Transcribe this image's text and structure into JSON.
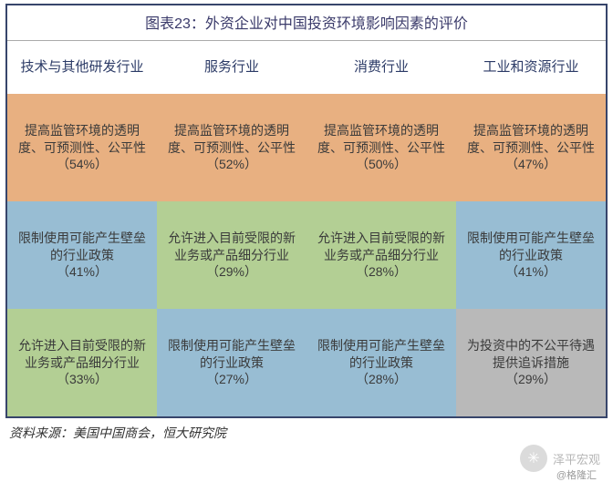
{
  "title": "图表23：外资企业对中国投资环境影响因素的评价",
  "source": "资料来源：美国中国商会，恒大研究院",
  "colors": {
    "border": "#37456b",
    "orange": "#e8b081",
    "blue": "#98bdd3",
    "green": "#b3cf94",
    "gray": "#b9b9b9",
    "header_text": "#2b3a66"
  },
  "headers": [
    "技术与其他研发行业",
    "服务行业",
    "消费行业",
    "工业和资源行业"
  ],
  "rows": [
    [
      {
        "text": "提高监管环境的透明度、可预测性、公平性",
        "pct": "（54%）",
        "color": "orange"
      },
      {
        "text": "提高监管环境的透明度、可预测性、公平性",
        "pct": "（52%）",
        "color": "orange"
      },
      {
        "text": "提高监管环境的透明度、可预测性、公平性",
        "pct": "（50%）",
        "color": "orange"
      },
      {
        "text": "提高监管环境的透明度、可预测性、公平性",
        "pct": "（47%）",
        "color": "orange"
      }
    ],
    [
      {
        "text": "限制使用可能产生壁垒的行业政策",
        "pct": "（41%）",
        "color": "blue"
      },
      {
        "text": "允许进入目前受限的新业务或产品细分行业",
        "pct": "（29%）",
        "color": "green"
      },
      {
        "text": "允许进入目前受限的新业务或产品细分行业",
        "pct": "（28%）",
        "color": "green"
      },
      {
        "text": "限制使用可能产生壁垒的行业政策",
        "pct": "（41%）",
        "color": "blue"
      }
    ],
    [
      {
        "text": "允许进入目前受限的新业务或产品细分行业",
        "pct": "（33%）",
        "color": "green"
      },
      {
        "text": "限制使用可能产生壁垒的行业政策",
        "pct": "（27%）",
        "color": "blue"
      },
      {
        "text": "限制使用可能产生壁垒的行业政策",
        "pct": "（28%）",
        "color": "blue"
      },
      {
        "text": "为投资中的不公平待遇提供追诉措施",
        "pct": "（29%）",
        "color": "gray"
      }
    ]
  ],
  "watermark": {
    "name": "泽平宏观",
    "sub": "@格隆汇"
  }
}
